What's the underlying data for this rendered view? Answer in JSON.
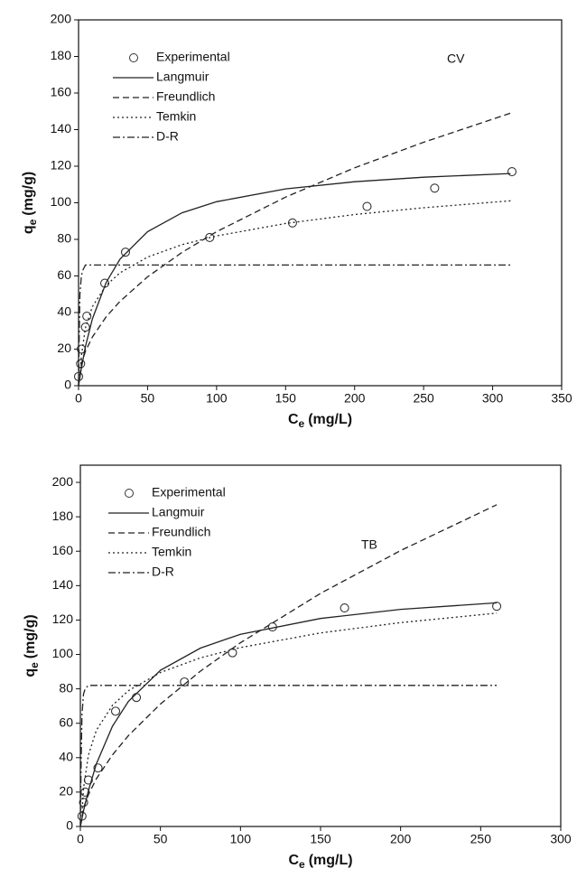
{
  "chart_data": [
    {
      "type": "scatter-line",
      "annotation": "CV",
      "xlabel": {
        "symbol": "C",
        "subscript": "e",
        "unit": "(mg/L)"
      },
      "ylabel": {
        "symbol": "q",
        "subscript": "e",
        "unit": "(mg/g)"
      },
      "xlim": [
        0,
        350
      ],
      "xticks": [
        0,
        50,
        100,
        150,
        200,
        250,
        300,
        350
      ],
      "ylim": [
        0,
        200
      ],
      "yticks": [
        0,
        20,
        40,
        60,
        80,
        100,
        120,
        140,
        160,
        180,
        200
      ],
      "series": [
        {
          "name": "Experimental",
          "style": "open-circle",
          "color": "#333333",
          "x": [
            0,
            1.5,
            2,
            5,
            6,
            19,
            34,
            95,
            155,
            209,
            258,
            314
          ],
          "values": [
            5,
            12,
            20,
            32,
            38,
            56,
            73,
            81,
            89,
            98,
            108,
            117
          ]
        },
        {
          "name": "Langmuir",
          "style": "solid",
          "color": "#222222",
          "x": [
            0,
            2,
            5,
            10,
            20,
            30,
            50,
            75,
            100,
            150,
            200,
            250,
            313
          ],
          "values": [
            0,
            9.5,
            21.4,
            36.5,
            56.5,
            69.2,
            84.2,
            94.5,
            100.6,
            107.6,
            111.5,
            114.0,
            116.0
          ]
        },
        {
          "name": "Freundlich",
          "style": "dashed",
          "color": "#222222",
          "x": [
            0,
            2,
            5,
            10,
            20,
            30,
            50,
            75,
            100,
            150,
            200,
            250,
            313
          ],
          "values": [
            0,
            11.9,
            18.8,
            26.6,
            37.7,
            46.1,
            59.5,
            72.9,
            84.2,
            103.1,
            119.1,
            133.1,
            149
          ]
        },
        {
          "name": "Temkin",
          "style": "dotted",
          "color": "#222222",
          "x": [
            1,
            2,
            5,
            10,
            20,
            30,
            50,
            75,
            100,
            150,
            200,
            250,
            313
          ],
          "values": [
            4.5,
            16.2,
            31.6,
            43.2,
            54.9,
            61.7,
            70.3,
            77.1,
            81.9,
            88.7,
            93.6,
            97.3,
            101.1
          ]
        },
        {
          "name": "D-R",
          "style": "dashdot",
          "color": "#222222",
          "x": [
            0,
            0.5,
            1,
            2,
            3,
            5,
            313
          ],
          "values": [
            0,
            30,
            50,
            60,
            63,
            66,
            66
          ]
        }
      ]
    },
    {
      "type": "scatter-line",
      "annotation": "TB",
      "xlabel": {
        "symbol": "C",
        "subscript": "e",
        "unit": "(mg/L)"
      },
      "ylabel": {
        "symbol": "q",
        "subscript": "e",
        "unit": "(mg/g)"
      },
      "xlim": [
        0,
        300
      ],
      "xticks": [
        0,
        50,
        100,
        150,
        200,
        250,
        300
      ],
      "ylim": [
        0,
        210
      ],
      "yticks": [
        0,
        20,
        40,
        60,
        80,
        100,
        120,
        140,
        160,
        180,
        200
      ],
      "series": [
        {
          "name": "Experimental",
          "style": "open-circle",
          "color": "#333333",
          "x": [
            1,
            2,
            3,
            5,
            11,
            22,
            35,
            65,
            95,
            120,
            165,
            260
          ],
          "values": [
            6,
            14,
            20,
            27,
            34,
            67,
            75,
            84,
            101,
            116,
            127,
            128
          ]
        },
        {
          "name": "Langmuir",
          "style": "solid",
          "color": "#222222",
          "x": [
            0,
            2,
            5,
            10,
            20,
            30,
            50,
            75,
            100,
            150,
            200,
            260
          ],
          "values": [
            0,
            9.1,
            20.8,
            36.4,
            58.2,
            72.7,
            90.8,
            103.7,
            111.7,
            120.9,
            126.2,
            130
          ]
        },
        {
          "name": "Freundlich",
          "style": "dashed",
          "color": "#222222",
          "x": [
            0,
            2,
            5,
            10,
            20,
            30,
            50,
            75,
            100,
            150,
            200,
            260
          ],
          "values": [
            0,
            10.8,
            18.5,
            27.7,
            41.6,
            52.8,
            71.2,
            90.3,
            106.8,
            135.5,
            160.4,
            187
          ]
        },
        {
          "name": "Temkin",
          "style": "dotted",
          "color": "#222222",
          "x": [
            1,
            2,
            5,
            10,
            20,
            30,
            50,
            75,
            100,
            150,
            200,
            260
          ],
          "values": [
            7.8,
            22.3,
            41.5,
            55.9,
            70.4,
            78.9,
            89.5,
            98.0,
            104.0,
            112.5,
            118.5,
            124
          ]
        },
        {
          "name": "D-R",
          "style": "dashdot",
          "color": "#222222",
          "x": [
            0,
            0.5,
            1,
            2,
            3,
            5,
            260
          ],
          "values": [
            0,
            40,
            65,
            77,
            80,
            82,
            82
          ]
        }
      ]
    }
  ]
}
